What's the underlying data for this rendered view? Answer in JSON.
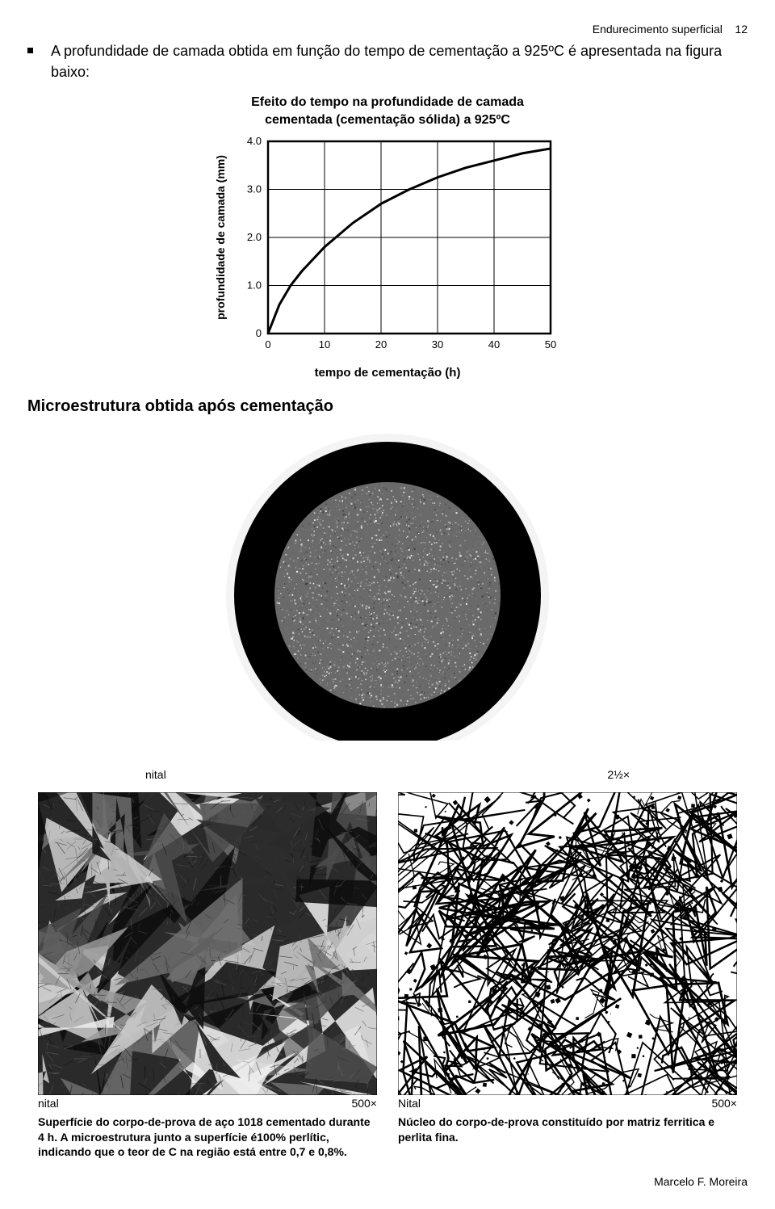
{
  "header": {
    "title": "Endurecimento superficial",
    "page_no": "12"
  },
  "bullet_paragraph": "A profundidade de camada obtida em função do tempo de cementação a 925ºC é apresentada na figura baixo:",
  "chart": {
    "type": "line",
    "title_line1": "Efeito do tempo na profundidade de camada",
    "title_line2": "cementada (cementação sólida) a 925ºC",
    "ylabel": "profundidade de camada (mm)",
    "xlabel": "tempo de cementação (h)",
    "xlim": [
      0,
      50
    ],
    "ylim": [
      0,
      4.0
    ],
    "xticks": [
      0,
      10,
      20,
      30,
      40,
      50
    ],
    "yticks": [
      0,
      1.0,
      2.0,
      3.0,
      4.0
    ],
    "ytick_labels": [
      "0",
      "1.0",
      "2.0",
      "3.0",
      "4.0"
    ],
    "points": [
      [
        0,
        0
      ],
      [
        2,
        0.6
      ],
      [
        4,
        1.0
      ],
      [
        6,
        1.3
      ],
      [
        10,
        1.8
      ],
      [
        15,
        2.3
      ],
      [
        20,
        2.7
      ],
      [
        25,
        3.0
      ],
      [
        30,
        3.25
      ],
      [
        35,
        3.45
      ],
      [
        40,
        3.6
      ],
      [
        45,
        3.75
      ],
      [
        50,
        3.85
      ]
    ],
    "line_color": "#000000",
    "line_width": 3,
    "grid_color": "#000000",
    "background_color": "#ffffff",
    "label_fontsize": 14,
    "tick_fontsize": 13
  },
  "section_title": "Microestrutura obtida após cementação",
  "top_micro": {
    "etchant": "nital",
    "magnification": "2½×",
    "ring_outer_color": "#000000",
    "ring_inner_color": "#6a6a6a",
    "halo_color": "#f4f4f4"
  },
  "left_micro": {
    "etchant": "nital",
    "magnification": "500×",
    "colors": [
      "#0c0c0c",
      "#2d2d2d",
      "#4c4c4c",
      "#6e6e6e",
      "#9a9a9a",
      "#cfcfcf",
      "#efefef"
    ],
    "caption": "Superfície do corpo-de-prova de aço 1018 cementado durante 4 h. A microestrutura junto a superfície é100% perlític, indicando que o teor de C na região está entre 0,7 e 0,8%."
  },
  "right_micro": {
    "etchant": "Nital",
    "magnification": "500×",
    "bg_color": "#ffffff",
    "line_color": "#000000",
    "caption": "Núcleo do corpo-de-prova constituído por matriz ferritica e perlita fina."
  },
  "footer": "Marcelo F. Moreira"
}
